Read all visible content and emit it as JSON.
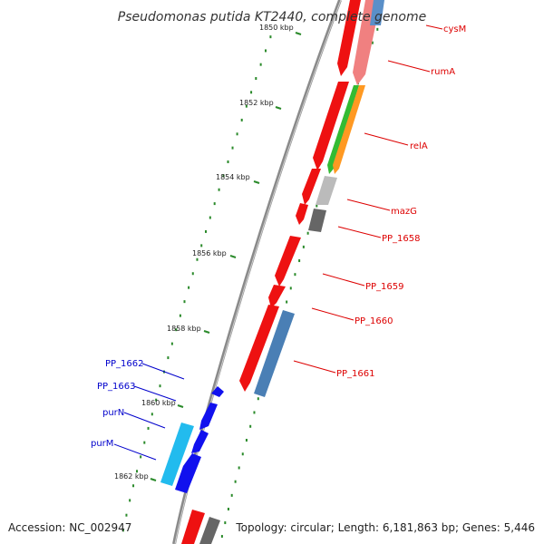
{
  "title": "Pseudomonas putida KT2440, complete genome",
  "footer": {
    "accession": "Accession: NC_002947",
    "topology": "Topology: circular; Length: 6,181,863 bp; Genes: 5,446"
  },
  "ticks": [
    "1850 kbp",
    "1852 kbp",
    "1854 kbp",
    "1856 kbp",
    "1858 kbp",
    "1860 kbp",
    "1862 kbp"
  ],
  "colors": {
    "backbone": "#8a8a8a",
    "red_gene": "#ee1111",
    "pink_gene": "#f08080",
    "green_gene": "#33bb33",
    "orange_gene": "#ff9922",
    "light_gray_gene": "#bbbbbb",
    "dark_gray_gene": "#666666",
    "steel_blue_gene": "#4a7fb5",
    "blue_gene": "#1111ee",
    "cyan_gene": "#22bbee",
    "dots": "#2a8a2a",
    "right_label": "#dd0000",
    "left_label": "#0000cc"
  },
  "gene_labels": {
    "right": [
      "cysM",
      "rumA",
      "relA",
      "mazG",
      "PP_1658",
      "PP_1659",
      "PP_1660",
      "PP_1661"
    ],
    "left": [
      "PP_1662",
      "PP_1663",
      "purN",
      "purM"
    ]
  }
}
